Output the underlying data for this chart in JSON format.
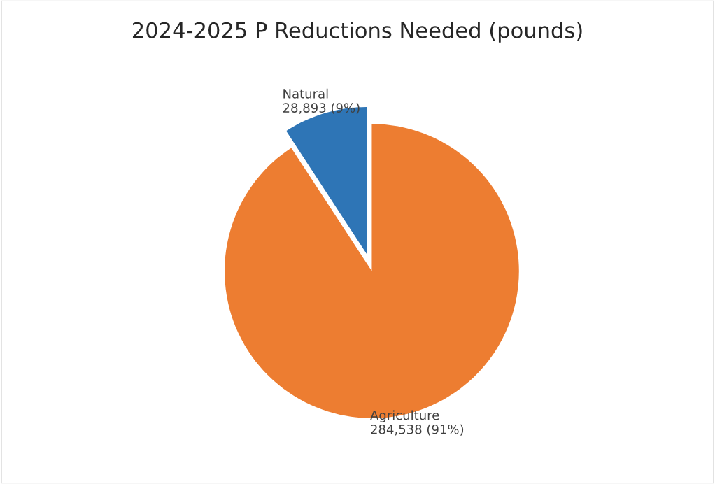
{
  "chart_data": {
    "type": "pie",
    "title": "2024-2025 P Reductions Needed (pounds)",
    "categories": [
      "Agriculture",
      "Natural"
    ],
    "values": [
      284538,
      28893
    ],
    "value_labels": [
      "284,538 (91%)",
      "28,893 (9%)"
    ],
    "colors": [
      "#ed7d31",
      "#2e75b6"
    ]
  }
}
